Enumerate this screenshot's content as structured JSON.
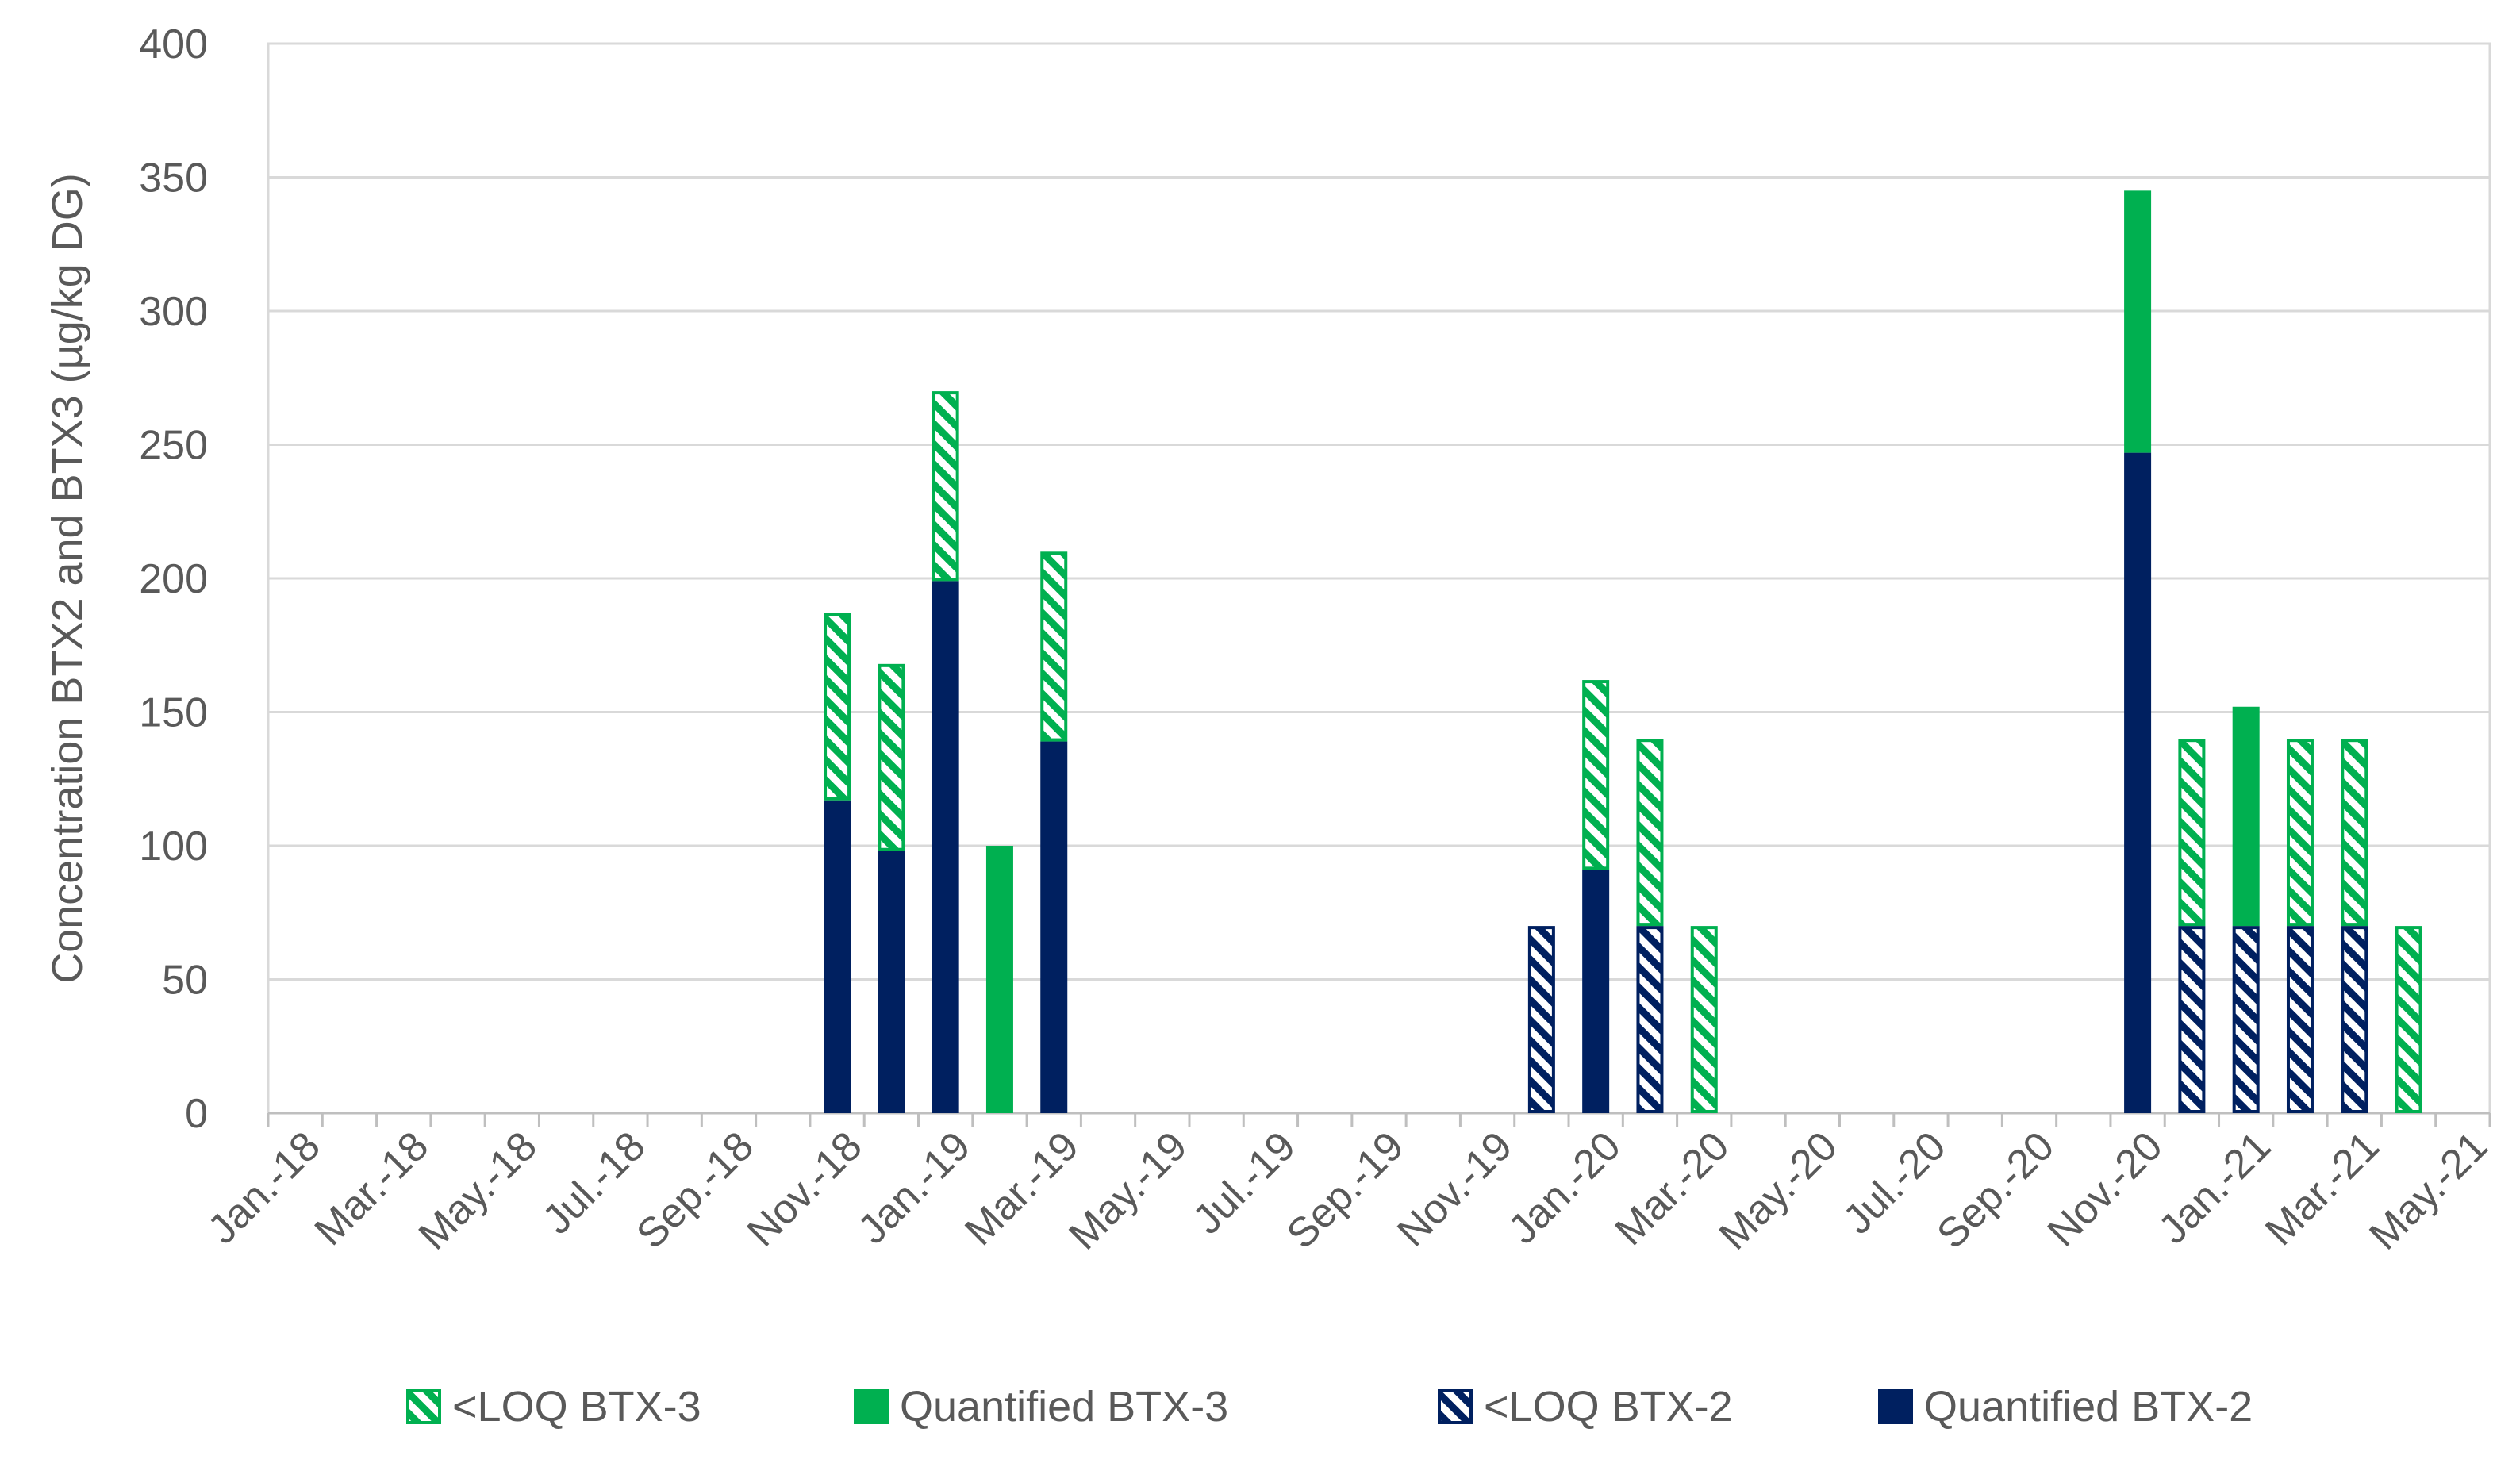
{
  "chart_data": {
    "type": "bar",
    "stacked": true,
    "title": "",
    "xlabel": "",
    "ylabel": "Concentration BTX2 and BTX3 (µg/kg DG)",
    "ylim": [
      0,
      400
    ],
    "yticks": [
      0,
      50,
      100,
      150,
      200,
      250,
      300,
      350,
      400
    ],
    "grid": true,
    "legend_position": "bottom",
    "x_tick_labels": [
      "Jan.-18",
      "Mar.-18",
      "May.-18",
      "Jul.-18",
      "Sep.-18",
      "Nov.-18",
      "Jan.-19",
      "Mar.-19",
      "May.-19",
      "Jul.-19",
      "Sep.-19",
      "Nov.-19",
      "Jan.-20",
      "Mar.-20",
      "May.-20",
      "Jul.-20",
      "Sep.-20",
      "Nov.-20",
      "Jan.-21",
      "Mar.-21",
      "May.-21"
    ],
    "x_month_range": [
      "Jan.-18",
      "May.-21"
    ],
    "series_meta": [
      {
        "key": "loq_btx3",
        "name": "<LOQ BTX-3",
        "color": "#00B050",
        "pattern": "hatched"
      },
      {
        "key": "q_btx3",
        "name": "Quantified BTX-3",
        "color": "#00B050",
        "pattern": "solid"
      },
      {
        "key": "loq_btx2",
        "name": "<LOQ BTX-2",
        "color": "#002060",
        "pattern": "hatched"
      },
      {
        "key": "q_btx2",
        "name": "Quantified BTX-2",
        "color": "#002060",
        "pattern": "solid"
      }
    ],
    "legend_order": [
      "loq_btx3",
      "q_btx3",
      "loq_btx2",
      "q_btx2"
    ],
    "bars": [
      {
        "date": "2018-11",
        "segments": [
          {
            "series": "q_btx2",
            "value": 117
          },
          {
            "series": "loq_btx3",
            "value": 70
          }
        ]
      },
      {
        "date": "2018-12",
        "segments": [
          {
            "series": "q_btx2",
            "value": 98
          },
          {
            "series": "loq_btx3",
            "value": 70
          }
        ]
      },
      {
        "date": "2019-01",
        "segments": [
          {
            "series": "q_btx2",
            "value": 199
          },
          {
            "series": "loq_btx3",
            "value": 71
          }
        ]
      },
      {
        "date": "2019-02",
        "segments": [
          {
            "series": "q_btx3",
            "value": 100
          }
        ]
      },
      {
        "date": "2019-03",
        "segments": [
          {
            "series": "q_btx2",
            "value": 139
          },
          {
            "series": "loq_btx3",
            "value": 71
          }
        ]
      },
      {
        "date": "2019-12",
        "segments": [
          {
            "series": "loq_btx2",
            "value": 70
          }
        ]
      },
      {
        "date": "2020-01",
        "segments": [
          {
            "series": "q_btx2",
            "value": 91
          },
          {
            "series": "loq_btx3",
            "value": 71
          }
        ]
      },
      {
        "date": "2020-02",
        "segments": [
          {
            "series": "loq_btx2",
            "value": 70
          },
          {
            "series": "loq_btx3",
            "value": 70
          }
        ]
      },
      {
        "date": "2020-03",
        "segments": [
          {
            "series": "loq_btx3",
            "value": 70
          }
        ]
      },
      {
        "date": "2020-11",
        "segments": [
          {
            "series": "q_btx2",
            "value": 247
          },
          {
            "series": "q_btx3",
            "value": 98
          }
        ]
      },
      {
        "date": "2020-12",
        "segments": [
          {
            "series": "loq_btx2",
            "value": 70
          },
          {
            "series": "loq_btx3",
            "value": 70
          }
        ]
      },
      {
        "date": "2021-01",
        "segments": [
          {
            "series": "loq_btx2",
            "value": 70
          },
          {
            "series": "q_btx3",
            "value": 82
          }
        ]
      },
      {
        "date": "2021-02",
        "segments": [
          {
            "series": "loq_btx2",
            "value": 70
          },
          {
            "series": "loq_btx3",
            "value": 70
          }
        ]
      },
      {
        "date": "2021-03",
        "segments": [
          {
            "series": "loq_btx2",
            "value": 70
          },
          {
            "series": "loq_btx3",
            "value": 70
          }
        ]
      },
      {
        "date": "2021-04",
        "segments": [
          {
            "series": "loq_btx3",
            "value": 70
          }
        ]
      }
    ]
  }
}
